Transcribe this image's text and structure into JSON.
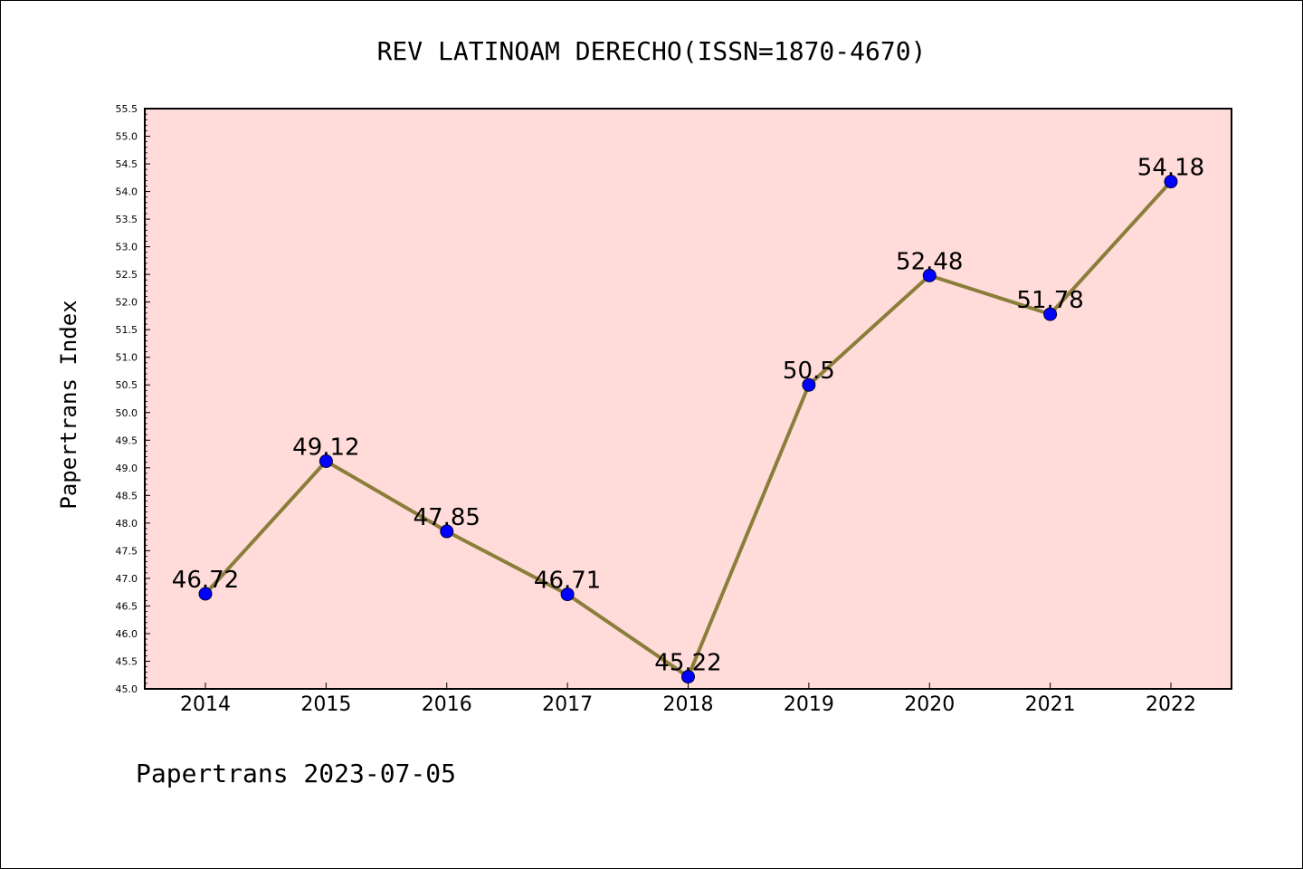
{
  "chart_data": {
    "type": "line",
    "title": "REV LATINOAM DERECHO(ISSN=1870-4670)",
    "ylabel": "Papertrans Index",
    "xlabel": "",
    "categories": [
      "2014",
      "2015",
      "2016",
      "2017",
      "2018",
      "2019",
      "2020",
      "2021",
      "2022"
    ],
    "values": [
      46.72,
      49.12,
      47.85,
      46.71,
      45.22,
      50.5,
      52.48,
      51.78,
      54.18
    ],
    "data_labels": [
      "46.72",
      "49.12",
      "47.85",
      "46.71",
      "45.22",
      "50.5",
      "52.48",
      "51.78",
      "54.18"
    ],
    "ylim": [
      45.0,
      55.5
    ],
    "yticks": [
      "45.0",
      "45.5",
      "46.0",
      "46.5",
      "47.0",
      "47.5",
      "48.0",
      "48.5",
      "49.0",
      "49.5",
      "50.0",
      "50.5",
      "51.0",
      "51.5",
      "52.0",
      "52.5",
      "53.0",
      "53.5",
      "54.0",
      "54.5",
      "55.0",
      "55.5"
    ],
    "grid": false,
    "colors": {
      "plot_background": "#FFDCDA",
      "line": "#8B7D3A",
      "marker": "#0000FF"
    }
  },
  "footer": "Papertrans 2023-07-05"
}
